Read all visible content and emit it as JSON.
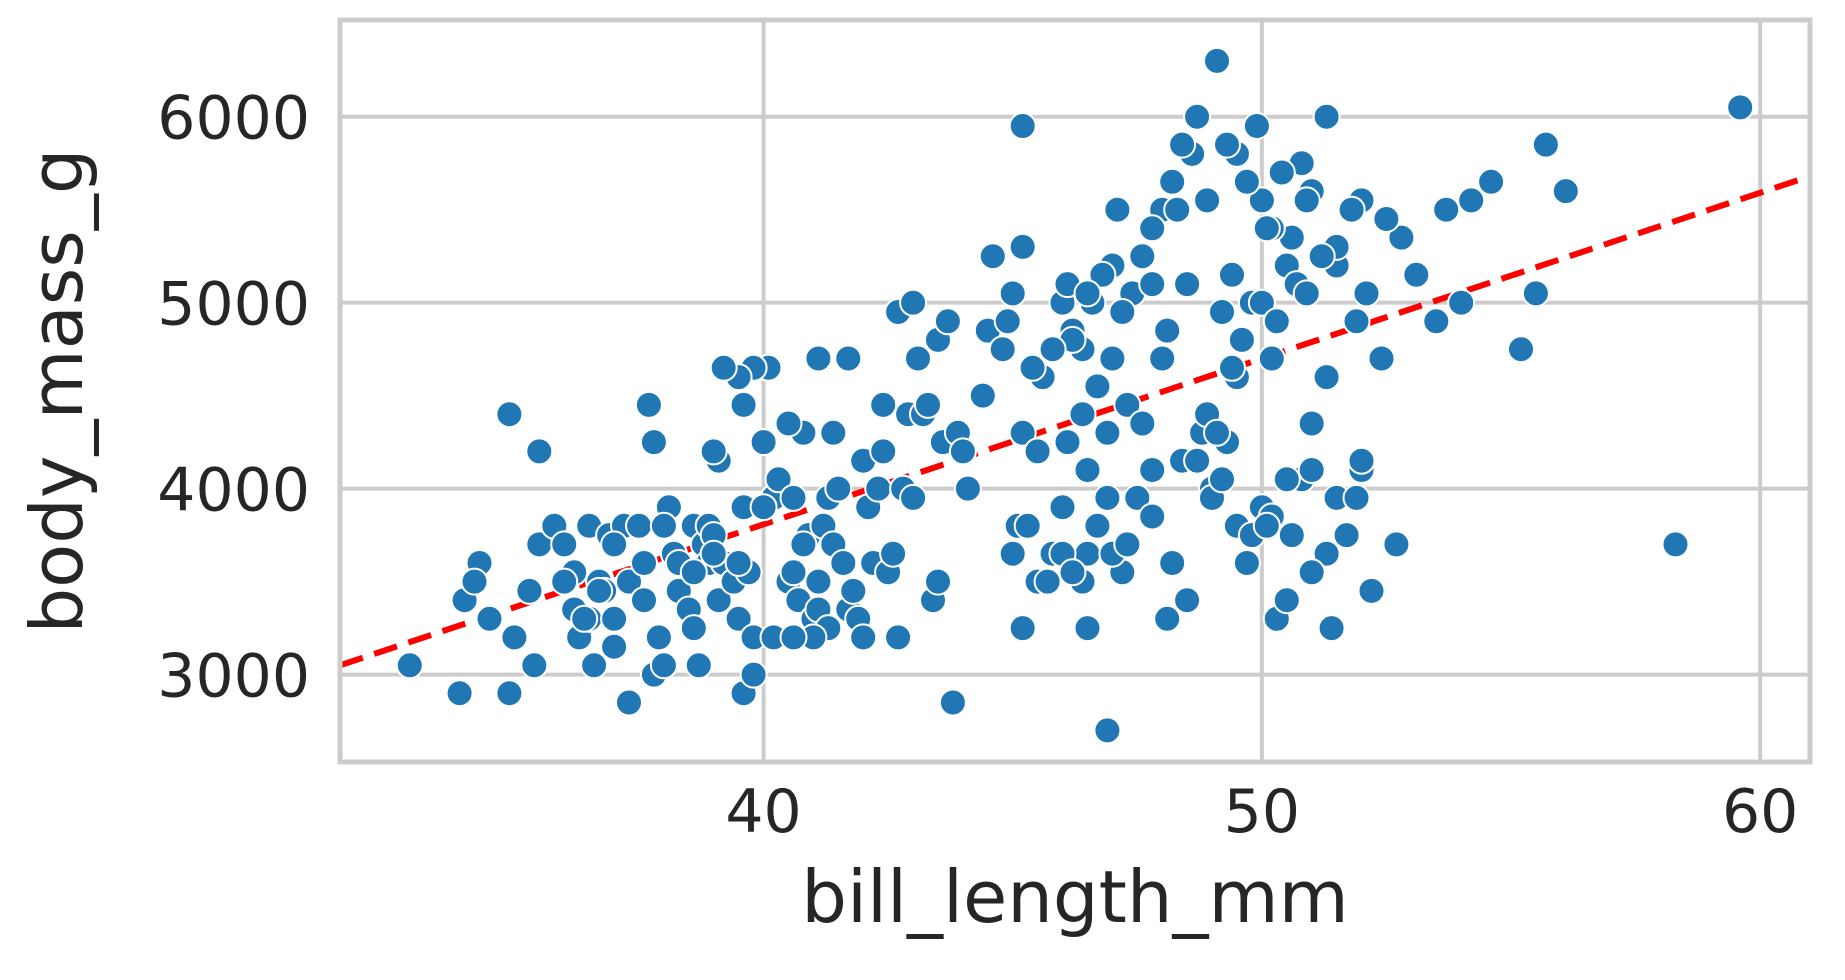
{
  "chart_data": {
    "type": "scatter",
    "xlabel": "bill_length_mm",
    "ylabel": "body_mass_g",
    "xlim": [
      31.5,
      61.0
    ],
    "ylim": [
      2530,
      6520
    ],
    "x_ticks": [
      40,
      50,
      60
    ],
    "y_ticks": [
      3000,
      4000,
      5000,
      6000
    ],
    "x_tick_labels": [
      "40",
      "50",
      "60"
    ],
    "y_tick_labels": [
      "3000",
      "4000",
      "5000",
      "6000"
    ],
    "grid": true,
    "point_color": "#2077b4",
    "trendline": {
      "style": "dashed",
      "color": "#ff0000",
      "x": [
        31.5,
        61.0
      ],
      "y": [
        3050,
        5680
      ]
    },
    "points": [
      [
        32.9,
        3050
      ],
      [
        33.9,
        2900
      ],
      [
        34.3,
        3600
      ],
      [
        34.0,
        3400
      ],
      [
        34.2,
        3500
      ],
      [
        34.5,
        3300
      ],
      [
        34.9,
        2900
      ],
      [
        35.0,
        3200
      ],
      [
        34.9,
        4400
      ],
      [
        35.3,
        3450
      ],
      [
        35.5,
        4200
      ],
      [
        35.4,
        3050
      ],
      [
        35.5,
        3700
      ],
      [
        35.8,
        3800
      ],
      [
        36.0,
        3700
      ],
      [
        36.2,
        3350
      ],
      [
        36.3,
        3200
      ],
      [
        36.2,
        3550
      ],
      [
        36.5,
        3800
      ],
      [
        36.5,
        3300
      ],
      [
        36.6,
        3050
      ],
      [
        36.7,
        3500
      ],
      [
        36.8,
        3450
      ],
      [
        36.9,
        3750
      ],
      [
        37.0,
        3300
      ],
      [
        37.0,
        3150
      ],
      [
        37.2,
        3800
      ],
      [
        37.3,
        2850
      ],
      [
        37.3,
        3500
      ],
      [
        37.5,
        3800
      ],
      [
        37.6,
        3400
      ],
      [
        37.8,
        3000
      ],
      [
        37.9,
        3200
      ],
      [
        38.0,
        3050
      ],
      [
        38.1,
        3900
      ],
      [
        38.2,
        3650
      ],
      [
        38.3,
        3600
      ],
      [
        38.3,
        3450
      ],
      [
        38.5,
        3350
      ],
      [
        38.6,
        3800
      ],
      [
        38.6,
        3250
      ],
      [
        38.7,
        3050
      ],
      [
        38.8,
        3700
      ],
      [
        38.9,
        3600
      ],
      [
        38.9,
        3800
      ],
      [
        39.0,
        3750
      ],
      [
        39.1,
        3400
      ],
      [
        39.2,
        3600
      ],
      [
        39.4,
        3500
      ],
      [
        39.5,
        3300
      ],
      [
        39.6,
        3900
      ],
      [
        39.6,
        2900
      ],
      [
        39.7,
        3550
      ],
      [
        39.8,
        3000
      ],
      [
        39.8,
        3200
      ],
      [
        40.0,
        4250
      ],
      [
        40.1,
        4650
      ],
      [
        40.2,
        3950
      ],
      [
        40.2,
        3200
      ],
      [
        40.3,
        4050
      ],
      [
        40.5,
        3500
      ],
      [
        40.6,
        3550
      ],
      [
        40.6,
        3950
      ],
      [
        40.7,
        3400
      ],
      [
        40.8,
        4300
      ],
      [
        40.9,
        3750
      ],
      [
        41.0,
        3300
      ],
      [
        41.1,
        3500
      ],
      [
        41.1,
        3350
      ],
      [
        41.2,
        3800
      ],
      [
        41.3,
        3950
      ],
      [
        41.3,
        3250
      ],
      [
        41.4,
        3700
      ],
      [
        41.5,
        4000
      ],
      [
        41.6,
        3600
      ],
      [
        41.7,
        3350
      ],
      [
        41.8,
        3450
      ],
      [
        41.9,
        3300
      ],
      [
        42.0,
        3200
      ],
      [
        42.0,
        4150
      ],
      [
        42.1,
        3900
      ],
      [
        42.2,
        3600
      ],
      [
        42.3,
        4000
      ],
      [
        42.4,
        4200
      ],
      [
        42.5,
        3550
      ],
      [
        42.6,
        3650
      ],
      [
        42.7,
        3200
      ],
      [
        42.8,
        4000
      ],
      [
        42.9,
        4400
      ],
      [
        43.0,
        3950
      ],
      [
        43.1,
        4700
      ],
      [
        43.2,
        4400
      ],
      [
        43.3,
        4450
      ],
      [
        43.4,
        3400
      ],
      [
        43.5,
        3500
      ],
      [
        43.6,
        4250
      ],
      [
        43.8,
        2850
      ],
      [
        43.9,
        4300
      ],
      [
        44.0,
        4200
      ],
      [
        44.1,
        4000
      ],
      [
        44.4,
        4500
      ],
      [
        44.5,
        4850
      ],
      [
        44.9,
        4900
      ],
      [
        45.0,
        3650
      ],
      [
        45.1,
        3800
      ],
      [
        45.2,
        4300
      ],
      [
        45.3,
        3800
      ],
      [
        45.5,
        4200
      ],
      [
        45.7,
        3500
      ],
      [
        45.8,
        3650
      ],
      [
        46.0,
        3900
      ],
      [
        46.1,
        4250
      ],
      [
        46.2,
        4850
      ],
      [
        46.4,
        4400
      ],
      [
        46.5,
        4100
      ],
      [
        46.7,
        4550
      ],
      [
        46.9,
        4300
      ],
      [
        47.0,
        4700
      ],
      [
        47.2,
        3550
      ],
      [
        47.3,
        4450
      ],
      [
        47.5,
        3950
      ],
      [
        47.6,
        4350
      ],
      [
        47.8,
        4100
      ],
      [
        48.0,
        4700
      ],
      [
        48.1,
        4850
      ],
      [
        48.2,
        3600
      ],
      [
        48.4,
        4150
      ],
      [
        48.5,
        5100
      ],
      [
        48.7,
        4150
      ],
      [
        48.8,
        4300
      ],
      [
        49.0,
        4000
      ],
      [
        49.2,
        4950
      ],
      [
        49.3,
        4250
      ],
      [
        49.5,
        4600
      ],
      [
        49.6,
        4800
      ],
      [
        49.8,
        5000
      ],
      [
        50.0,
        5000
      ],
      [
        50.2,
        4700
      ],
      [
        50.3,
        4900
      ],
      [
        50.5,
        5200
      ],
      [
        50.7,
        5100
      ],
      [
        50.9,
        5050
      ],
      [
        51.0,
        4350
      ],
      [
        51.3,
        4600
      ],
      [
        51.5,
        5200
      ],
      [
        51.9,
        4900
      ],
      [
        52.1,
        5050
      ],
      [
        52.4,
        4700
      ],
      [
        52.8,
        5350
      ],
      [
        53.1,
        5150
      ],
      [
        53.5,
        4900
      ],
      [
        54.0,
        5000
      ],
      [
        54.2,
        5550
      ],
      [
        55.2,
        4750
      ],
      [
        55.5,
        5050
      ],
      [
        58.3,
        3700
      ],
      [
        59.6,
        6050
      ],
      [
        56.1,
        5600
      ],
      [
        55.7,
        5850
      ],
      [
        54.6,
        5650
      ],
      [
        53.7,
        5500
      ],
      [
        52.5,
        5450
      ],
      [
        52.0,
        5550
      ],
      [
        51.8,
        5500
      ],
      [
        51.5,
        5300
      ],
      [
        51.2,
        5250
      ],
      [
        51.0,
        5600
      ],
      [
        50.9,
        5550
      ],
      [
        50.8,
        5750
      ],
      [
        50.6,
        5350
      ],
      [
        50.4,
        5700
      ],
      [
        50.2,
        5400
      ],
      [
        50.0,
        5550
      ],
      [
        49.9,
        5950
      ],
      [
        49.7,
        5650
      ],
      [
        49.5,
        5800
      ],
      [
        49.3,
        5850
      ],
      [
        49.1,
        6300
      ],
      [
        48.9,
        5550
      ],
      [
        48.7,
        6000
      ],
      [
        48.6,
        5800
      ],
      [
        48.4,
        5850
      ],
      [
        48.2,
        5650
      ],
      [
        48.0,
        5500
      ],
      [
        47.8,
        5400
      ],
      [
        47.6,
        5250
      ],
      [
        47.4,
        5050
      ],
      [
        47.2,
        4950
      ],
      [
        47.0,
        5200
      ],
      [
        46.8,
        5150
      ],
      [
        46.6,
        5000
      ],
      [
        46.4,
        4750
      ],
      [
        46.2,
        4800
      ],
      [
        46.0,
        5000
      ],
      [
        45.8,
        4750
      ],
      [
        45.6,
        4600
      ],
      [
        45.4,
        4650
      ],
      [
        45.2,
        5300
      ],
      [
        45.0,
        5050
      ],
      [
        44.8,
        4750
      ],
      [
        44.6,
        5250
      ],
      [
        45.2,
        5950
      ],
      [
        46.1,
        5100
      ],
      [
        46.5,
        5050
      ],
      [
        47.1,
        5500
      ],
      [
        47.8,
        5100
      ],
      [
        48.3,
        5500
      ],
      [
        49.4,
        5150
      ],
      [
        50.1,
        5400
      ],
      [
        51.3,
        6000
      ],
      [
        42.7,
        4950
      ],
      [
        43.0,
        5000
      ],
      [
        43.5,
        4800
      ],
      [
        43.7,
        4900
      ],
      [
        41.1,
        4700
      ],
      [
        41.4,
        4300
      ],
      [
        42.4,
        4450
      ],
      [
        41.7,
        4700
      ],
      [
        40.5,
        4350
      ],
      [
        39.8,
        4650
      ],
      [
        39.6,
        4450
      ],
      [
        39.5,
        4600
      ],
      [
        39.2,
        4650
      ],
      [
        39.1,
        4150
      ],
      [
        39.0,
        4200
      ],
      [
        37.7,
        4450
      ],
      [
        37.8,
        4250
      ],
      [
        36.0,
        3500
      ],
      [
        36.4,
        3300
      ],
      [
        36.7,
        3450
      ],
      [
        37.0,
        3700
      ],
      [
        37.6,
        3600
      ],
      [
        38.0,
        3800
      ],
      [
        38.6,
        3550
      ],
      [
        39.0,
        3650
      ],
      [
        39.5,
        3600
      ],
      [
        40.0,
        3900
      ],
      [
        40.8,
        3700
      ],
      [
        41.0,
        3200
      ],
      [
        40.6,
        3200
      ],
      [
        46.9,
        3950
      ],
      [
        46.5,
        3650
      ],
      [
        46.4,
        3500
      ],
      [
        46.0,
        3650
      ],
      [
        45.5,
        3500
      ],
      [
        45.2,
        3250
      ],
      [
        45.7,
        3500
      ],
      [
        46.2,
        3550
      ],
      [
        46.5,
        3250
      ],
      [
        46.7,
        3800
      ],
      [
        47.0,
        3650
      ],
      [
        47.3,
        3700
      ],
      [
        47.8,
        3850
      ],
      [
        48.1,
        3300
      ],
      [
        48.5,
        3400
      ],
      [
        49.0,
        3950
      ],
      [
        49.2,
        4050
      ],
      [
        49.5,
        3800
      ],
      [
        49.7,
        3600
      ],
      [
        50.0,
        3900
      ],
      [
        50.2,
        3850
      ],
      [
        50.3,
        3300
      ],
      [
        50.5,
        3400
      ],
      [
        50.8,
        4050
      ],
      [
        51.0,
        4100
      ],
      [
        51.3,
        3650
      ],
      [
        51.4,
        3250
      ],
      [
        51.5,
        3950
      ],
      [
        51.7,
        3750
      ],
      [
        52.0,
        4100
      ],
      [
        52.2,
        3450
      ],
      [
        52.7,
        3700
      ],
      [
        49.8,
        3750
      ],
      [
        50.1,
        3800
      ],
      [
        51.0,
        3550
      ],
      [
        50.6,
        3750
      ],
      [
        48.9,
        4400
      ],
      [
        49.4,
        4650
      ],
      [
        46.9,
        2700
      ],
      [
        51.9,
        3950
      ],
      [
        52.0,
        4150
      ],
      [
        50.5,
        4050
      ],
      [
        49.1,
        4300
      ]
    ]
  }
}
